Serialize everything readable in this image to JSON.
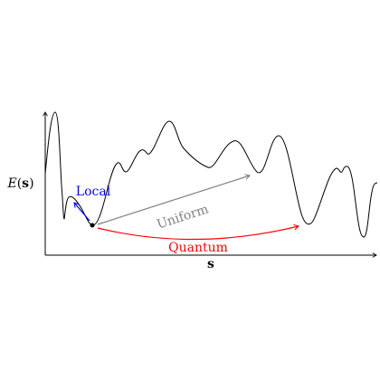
{
  "axes": {
    "y_label": "E(s)",
    "y_label_italic": "E",
    "y_label_bold": "s",
    "x_label": "s"
  },
  "arrows": {
    "local": {
      "label": "Local",
      "color": "#0000ff"
    },
    "uniform": {
      "label": "Uniform",
      "color": "#808080"
    },
    "quantum": {
      "label": "Quantum",
      "color": "#ff0000"
    }
  },
  "colors": {
    "curve": "#000000",
    "axis": "#000000",
    "start_point": "#000000"
  }
}
